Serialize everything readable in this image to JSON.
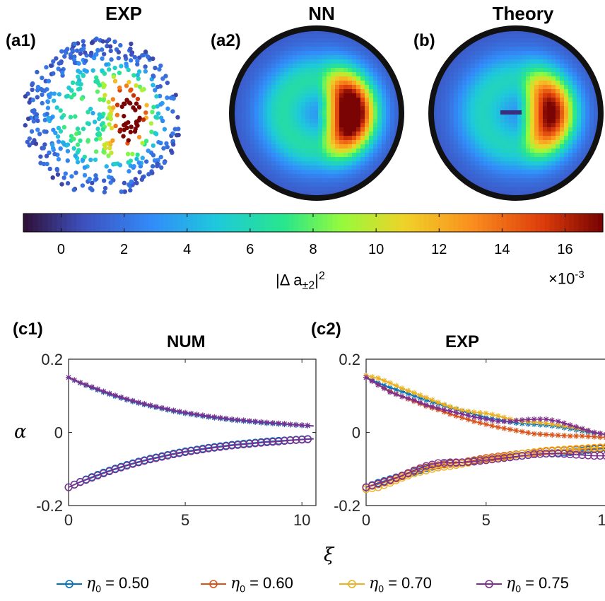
{
  "panels": {
    "a1": {
      "label": "(a1)",
      "title": "EXP"
    },
    "a2": {
      "label": "(a2)",
      "title": "NN"
    },
    "b": {
      "label": "(b)",
      "title": "Theory"
    },
    "c1": {
      "label": "(c1)",
      "title": "NUM"
    },
    "c2": {
      "label": "(c2)",
      "title": "EXP"
    }
  },
  "colorbar": {
    "ticks": [
      "0",
      "2",
      "4",
      "6",
      "8",
      "10",
      "12",
      "14",
      "16"
    ],
    "tick_values": [
      0,
      2,
      4,
      6,
      8,
      10,
      12,
      14,
      16
    ],
    "range": [
      -1.2,
      17.2
    ],
    "label_main": "|Δ a",
    "label_sub": "±2",
    "label_sup": "2",
    "multiplier": "×10",
    "multiplier_exp": "-3",
    "colormap": "jet"
  },
  "axes": {
    "ylabel": "α",
    "xlabel": "ξ",
    "yticks": [
      "0.2",
      "0",
      "-0.2"
    ],
    "xticks": [
      "0",
      "5",
      "10"
    ]
  },
  "legend": [
    {
      "eta": "η",
      "sub": "0",
      "text": " = 0.50",
      "color": "#0072bd"
    },
    {
      "eta": "η",
      "sub": "0",
      "text": " = 0.60",
      "color": "#d95319"
    },
    {
      "eta": "η",
      "sub": "0",
      "text": " = 0.70",
      "color": "#edb120"
    },
    {
      "eta": "η",
      "sub": "0",
      "text": " = 0.75",
      "color": "#7e2f8e"
    }
  ],
  "chart_data": [
    {
      "type": "line",
      "title": "NUM",
      "xlabel": "ξ",
      "ylabel": "α",
      "xlim": [
        0,
        10.6
      ],
      "ylim": [
        -0.2,
        0.2
      ],
      "x": [
        0,
        0.5,
        1,
        1.5,
        2,
        2.5,
        3,
        3.5,
        4,
        4.5,
        5,
        5.5,
        6,
        6.5,
        7,
        7.5,
        8,
        8.5,
        9,
        9.5,
        10,
        10.5
      ],
      "series": [
        {
          "name": "η0 = 0.50 (upper)",
          "color": "#0072bd",
          "values": [
            0.15,
            0.135,
            0.122,
            0.11,
            0.099,
            0.089,
            0.08,
            0.072,
            0.065,
            0.058,
            0.052,
            0.047,
            0.042,
            0.038,
            0.034,
            0.031,
            0.028,
            0.025,
            0.023,
            0.021,
            0.019,
            0.017
          ]
        },
        {
          "name": "η0 = 0.50 (lower)",
          "color": "#0072bd",
          "values": [
            -0.15,
            -0.135,
            -0.122,
            -0.11,
            -0.099,
            -0.089,
            -0.08,
            -0.072,
            -0.065,
            -0.058,
            -0.052,
            -0.047,
            -0.042,
            -0.038,
            -0.034,
            -0.031,
            -0.028,
            -0.025,
            -0.023,
            -0.021,
            -0.019,
            -0.017
          ]
        },
        {
          "name": "η0 = 0.75 (upper)",
          "color": "#7e2f8e",
          "values": [
            0.15,
            0.136,
            0.124,
            0.112,
            0.101,
            0.091,
            0.082,
            0.074,
            0.067,
            0.06,
            0.054,
            0.049,
            0.044,
            0.04,
            0.036,
            0.033,
            0.03,
            0.027,
            0.025,
            0.022,
            0.02,
            0.018
          ]
        },
        {
          "name": "η0 = 0.75 (lower)",
          "color": "#7e2f8e",
          "values": [
            -0.15,
            -0.136,
            -0.124,
            -0.112,
            -0.101,
            -0.091,
            -0.082,
            -0.074,
            -0.067,
            -0.06,
            -0.054,
            -0.049,
            -0.044,
            -0.04,
            -0.036,
            -0.033,
            -0.03,
            -0.027,
            -0.025,
            -0.022,
            -0.02,
            -0.018
          ]
        }
      ]
    },
    {
      "type": "line",
      "title": "EXP",
      "xlabel": "ξ",
      "ylabel": "α",
      "xlim": [
        0,
        10.6
      ],
      "ylim": [
        -0.2,
        0.2
      ],
      "x": [
        0,
        0.5,
        1,
        1.5,
        2,
        2.5,
        3,
        3.5,
        4,
        4.5,
        5,
        5.5,
        6,
        6.5,
        7,
        7.5,
        8,
        8.5,
        9,
        9.5,
        10,
        10.5
      ],
      "series": [
        {
          "name": "η0 = 0.50 (upper)",
          "color": "#0072bd",
          "values": [
            0.15,
            0.135,
            0.122,
            0.112,
            0.1,
            0.088,
            0.078,
            0.068,
            0.058,
            0.05,
            0.04,
            0.035,
            0.028,
            0.024,
            0.022,
            0.02,
            0.016,
            0.01,
            0.004,
            -0.002,
            -0.006,
            -0.01
          ]
        },
        {
          "name": "η0 = 0.50 (lower)",
          "color": "#0072bd",
          "values": [
            -0.15,
            -0.138,
            -0.128,
            -0.118,
            -0.108,
            -0.098,
            -0.09,
            -0.084,
            -0.082,
            -0.078,
            -0.074,
            -0.07,
            -0.068,
            -0.064,
            -0.06,
            -0.058,
            -0.056,
            -0.054,
            -0.05,
            -0.046,
            -0.044,
            -0.042
          ]
        },
        {
          "name": "η0 = 0.60 (upper)",
          "color": "#d95319",
          "values": [
            0.15,
            0.13,
            0.112,
            0.098,
            0.085,
            0.072,
            0.062,
            0.05,
            0.04,
            0.03,
            0.022,
            0.014,
            0.008,
            0.002,
            -0.004,
            -0.006,
            -0.008,
            -0.01,
            -0.01,
            -0.012,
            -0.014,
            -0.016
          ]
        },
        {
          "name": "η0 = 0.60 (lower)",
          "color": "#d95319",
          "values": [
            -0.15,
            -0.142,
            -0.132,
            -0.12,
            -0.106,
            -0.096,
            -0.09,
            -0.086,
            -0.082,
            -0.076,
            -0.07,
            -0.066,
            -0.062,
            -0.058,
            -0.056,
            -0.052,
            -0.05,
            -0.048,
            -0.046,
            -0.044,
            -0.042,
            -0.04
          ]
        },
        {
          "name": "η0 = 0.70 (upper)",
          "color": "#edb120",
          "values": [
            0.155,
            0.148,
            0.135,
            0.12,
            0.108,
            0.095,
            0.082,
            0.07,
            0.06,
            0.055,
            0.052,
            0.045,
            0.036,
            0.03,
            0.028,
            0.025,
            0.02,
            0.015,
            0.008,
            0.0,
            -0.006,
            -0.01
          ]
        },
        {
          "name": "η0 = 0.70 (lower)",
          "color": "#edb120",
          "values": [
            -0.155,
            -0.15,
            -0.138,
            -0.124,
            -0.112,
            -0.104,
            -0.096,
            -0.092,
            -0.086,
            -0.08,
            -0.074,
            -0.07,
            -0.064,
            -0.058,
            -0.054,
            -0.05,
            -0.048,
            -0.046,
            -0.044,
            -0.042,
            -0.04,
            -0.038
          ]
        },
        {
          "name": "η0 = 0.75 (upper)",
          "color": "#7e2f8e",
          "values": [
            0.15,
            0.13,
            0.11,
            0.098,
            0.088,
            0.075,
            0.066,
            0.058,
            0.05,
            0.042,
            0.036,
            0.03,
            0.03,
            0.034,
            0.036,
            0.036,
            0.03,
            0.02,
            0.01,
            0.0,
            -0.006,
            -0.01
          ]
        },
        {
          "name": "η0 = 0.75 (lower)",
          "color": "#7e2f8e",
          "values": [
            -0.15,
            -0.14,
            -0.13,
            -0.118,
            -0.104,
            -0.092,
            -0.084,
            -0.082,
            -0.082,
            -0.08,
            -0.076,
            -0.072,
            -0.068,
            -0.064,
            -0.06,
            -0.058,
            -0.058,
            -0.06,
            -0.062,
            -0.064,
            -0.064,
            -0.064
          ]
        }
      ]
    }
  ]
}
